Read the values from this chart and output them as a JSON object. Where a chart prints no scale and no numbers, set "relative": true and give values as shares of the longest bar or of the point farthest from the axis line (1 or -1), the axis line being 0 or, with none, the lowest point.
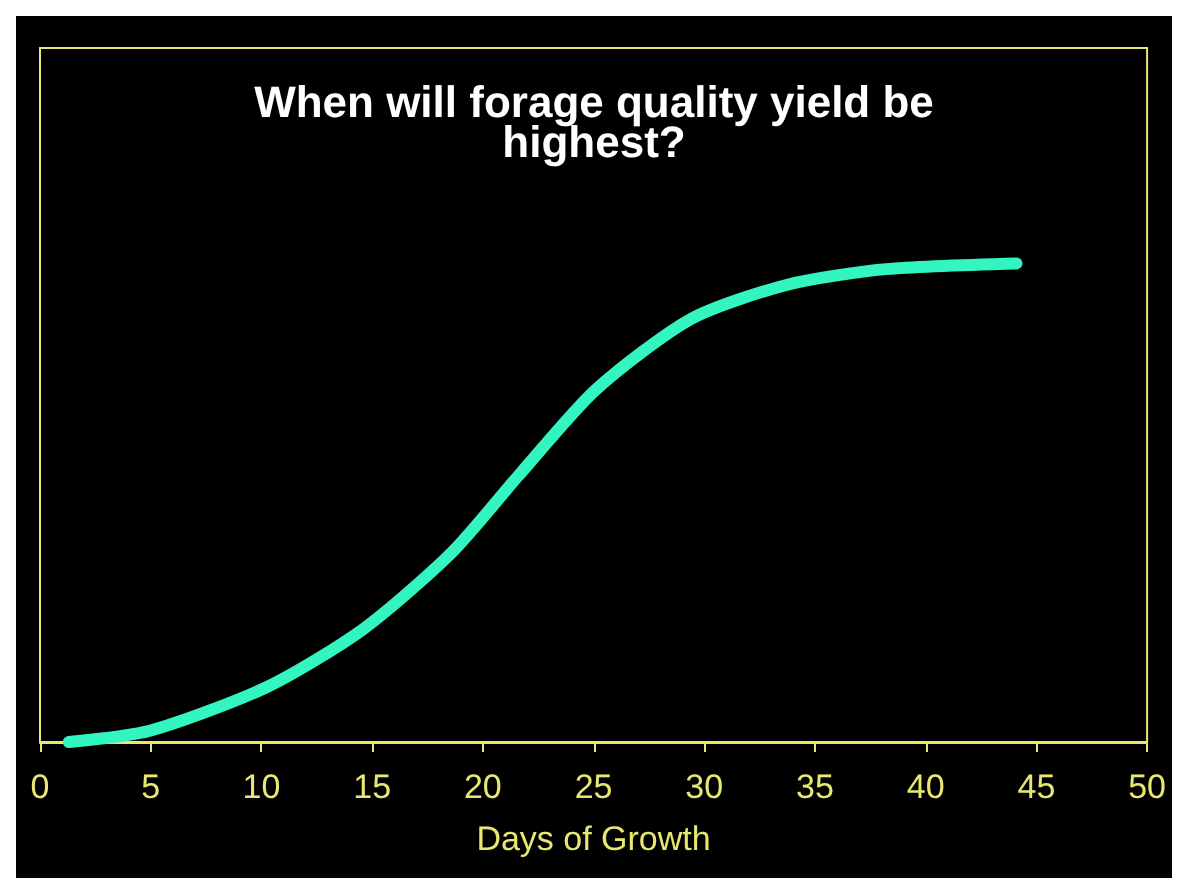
{
  "chart_data": {
    "type": "line",
    "title": "When will forage quality yield be\nhighest?",
    "xlabel": "Days of Growth",
    "relative": true,
    "series": [
      {
        "color": "#33f5c0",
        "x": [
          1.3,
          5,
          10.3,
          14.6,
          18.6,
          21.6,
          25.1,
          29.4,
          33.8,
          38.2,
          44.1
        ],
        "values": [
          0,
          0.024,
          0.116,
          0.236,
          0.396,
          0.556,
          0.736,
          0.884,
          0.956,
          0.988,
          1
        ]
      }
    ],
    "xlim": [
      0,
      50
    ],
    "xticks": [
      0,
      5,
      10,
      15,
      20,
      25,
      30,
      35,
      40,
      45,
      50
    ],
    "grid": false,
    "marker": "none",
    "line_style": "solid"
  }
}
